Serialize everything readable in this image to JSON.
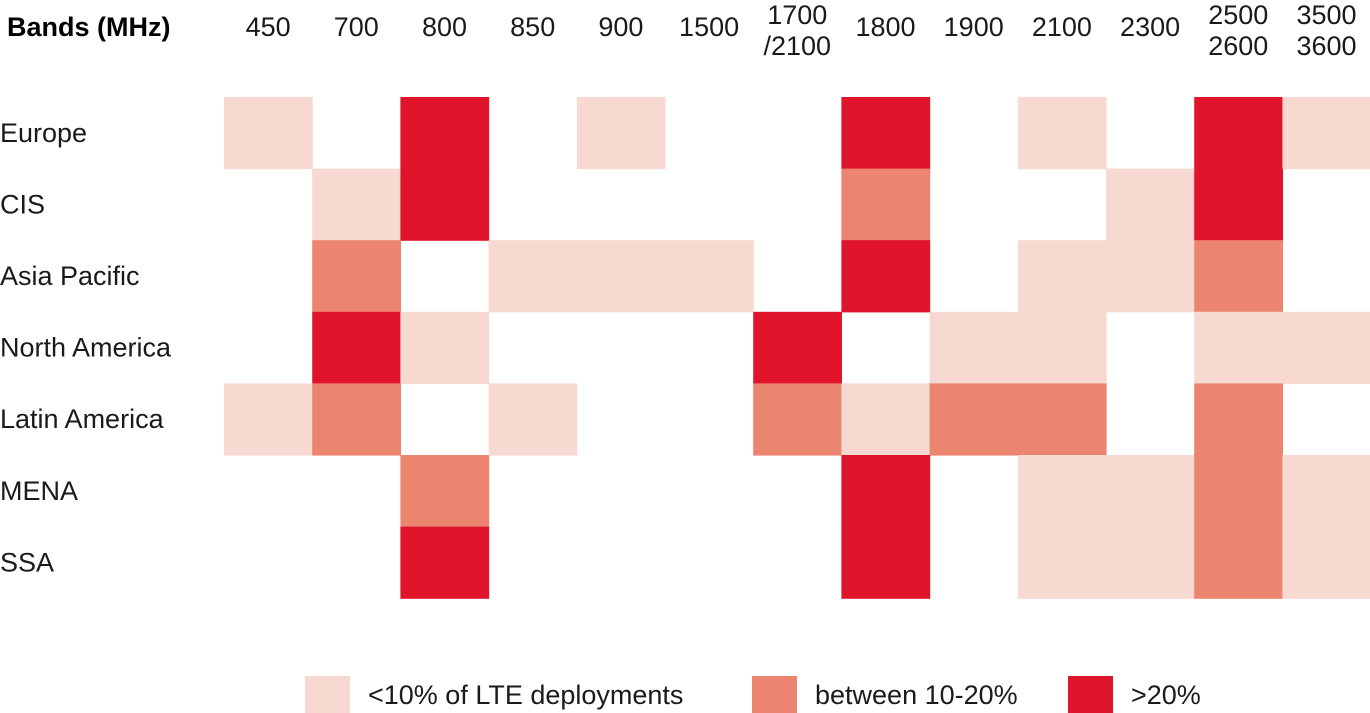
{
  "chart_data": {
    "type": "heatmap",
    "title": "Bands (MHz)",
    "columns": [
      [
        "450"
      ],
      [
        "700"
      ],
      [
        "800"
      ],
      [
        "850"
      ],
      [
        "900"
      ],
      [
        "1500"
      ],
      [
        "1700",
        "/2100"
      ],
      [
        "1800"
      ],
      [
        "1900"
      ],
      [
        "2100"
      ],
      [
        "2300"
      ],
      [
        "2500",
        "2600"
      ],
      [
        "3500",
        "3600"
      ]
    ],
    "rows": [
      "Europe",
      "CIS",
      "Asia Pacific",
      "North America",
      "Latin America",
      "MENA",
      "SSA"
    ],
    "levels": [
      {
        "value": 1,
        "label": "<10% of LTE deployments",
        "color": "#f8d9d1"
      },
      {
        "value": 2,
        "label": "between 10-20%",
        "color": "#ec8570"
      },
      {
        "value": 3,
        "label": ">20%",
        "color": "#e0152b"
      }
    ],
    "values": [
      [
        1,
        0,
        3,
        0,
        1,
        0,
        0,
        3,
        0,
        1,
        0,
        3,
        1
      ],
      [
        0,
        1,
        3,
        0,
        0,
        0,
        0,
        2,
        0,
        0,
        1,
        3,
        0
      ],
      [
        0,
        2,
        0,
        1,
        1,
        1,
        0,
        3,
        0,
        1,
        1,
        2,
        0
      ],
      [
        0,
        3,
        1,
        0,
        0,
        0,
        3,
        0,
        1,
        1,
        0,
        1,
        1
      ],
      [
        1,
        2,
        0,
        1,
        0,
        0,
        2,
        1,
        2,
        2,
        0,
        2,
        0
      ],
      [
        0,
        0,
        2,
        0,
        0,
        0,
        0,
        3,
        0,
        1,
        1,
        2,
        1
      ],
      [
        0,
        0,
        3,
        0,
        0,
        0,
        0,
        3,
        0,
        1,
        1,
        2,
        1
      ]
    ]
  }
}
